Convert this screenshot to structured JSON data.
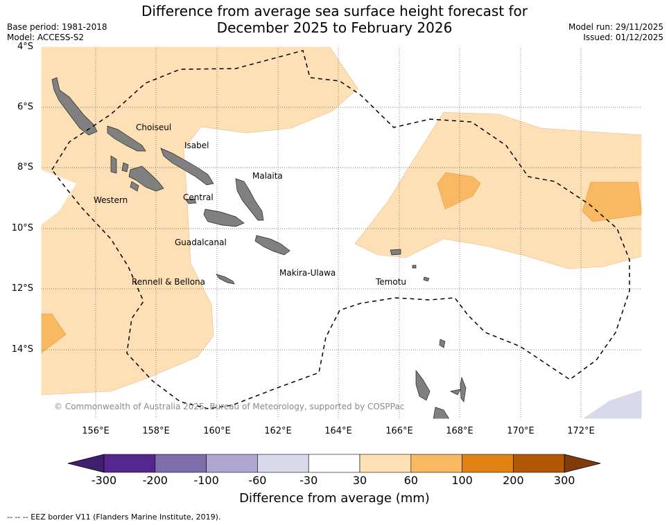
{
  "header": {
    "title_line1": "Difference from average sea surface height forecast for",
    "title_line2": "December 2025 to February 2026",
    "base_period": "Base period: 1981-2018",
    "model": "Model: ACCESS-S2",
    "model_run": "Model run: 29/11/2025",
    "issued": "Issued: 01/12/2025"
  },
  "map": {
    "lat_labels": [
      "4°S",
      "6°S",
      "8°S",
      "10°S",
      "12°S",
      "14°S"
    ],
    "lon_labels": [
      "156°E",
      "158°E",
      "160°E",
      "162°E",
      "164°E",
      "166°E",
      "168°E",
      "170°E",
      "172°E"
    ],
    "provinces": {
      "choiseul": "Choiseul",
      "isabel": "Isabel",
      "malaita": "Malaita",
      "western": "Western",
      "central": "Central",
      "guadalcanal": "Guadalcanal",
      "makira_ulawa": "Makira-Ulawa",
      "temotu": "Temotu",
      "rennell_bellona": "Rennell & Bellona"
    },
    "copyright": "© Commonwealth of Australia 2025, Bureau of Meteorology, supported by COSPPac"
  },
  "colorbar": {
    "tick_labels": [
      "-300",
      "-200",
      "-100",
      "-60",
      "-30",
      "30",
      "60",
      "100",
      "200",
      "300"
    ],
    "colors": [
      "#3f1f6e",
      "#54278f",
      "#7e6eac",
      "#aea6d0",
      "#d9d9ec",
      "#ffffff",
      "#fde0b6",
      "#f9b862",
      "#e08214",
      "#b35806",
      "#7f3b08"
    ],
    "title": "Difference from average (mm)"
  },
  "footer": {
    "legend": "--  --  -- EEZ border V11 (Flanders Marine Institute, 2019)."
  }
}
